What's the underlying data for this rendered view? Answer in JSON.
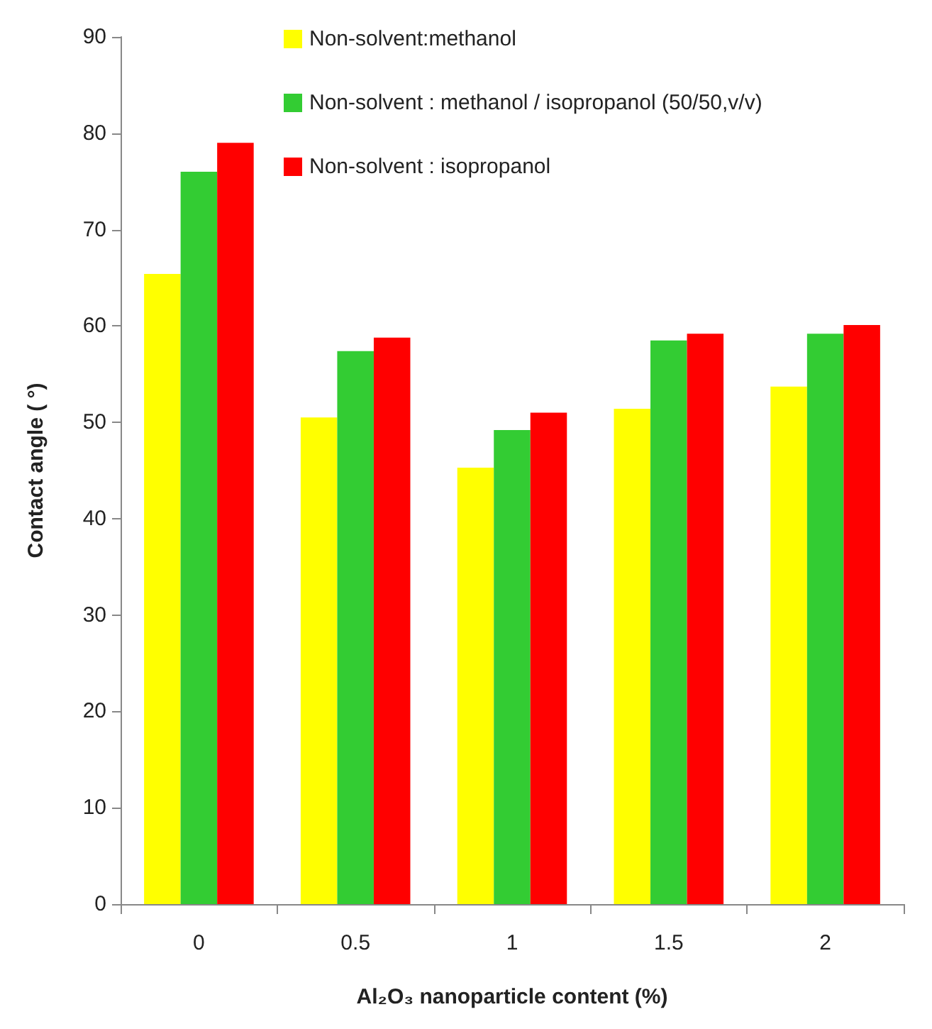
{
  "chart_data": {
    "type": "bar",
    "xlabel": "Al₂O₃ nanoparticle content (%)",
    "ylabel": "Contact angle ( °)",
    "categories": [
      "0",
      "0.5",
      "1",
      "1.5",
      "2"
    ],
    "series": [
      {
        "name": "Non-solvent:methanol",
        "color": "#ffff00",
        "values": [
          65.4,
          50.5,
          45.3,
          51.4,
          53.7
        ]
      },
      {
        "name": "Non-solvent : methanol / isopropanol (50/50,v/v)",
        "color": "#33cc33",
        "values": [
          76,
          57.4,
          49.2,
          58.5,
          59.2
        ]
      },
      {
        "name": "Non-solvent : isopropanol",
        "color": "#ff0000",
        "values": [
          79,
          58.8,
          51,
          59.2,
          60.1
        ]
      }
    ],
    "ylim": [
      0,
      90
    ],
    "yticks": [
      0,
      10,
      20,
      30,
      40,
      50,
      60,
      70,
      80,
      90
    ],
    "grid": false,
    "legend": "top right"
  }
}
